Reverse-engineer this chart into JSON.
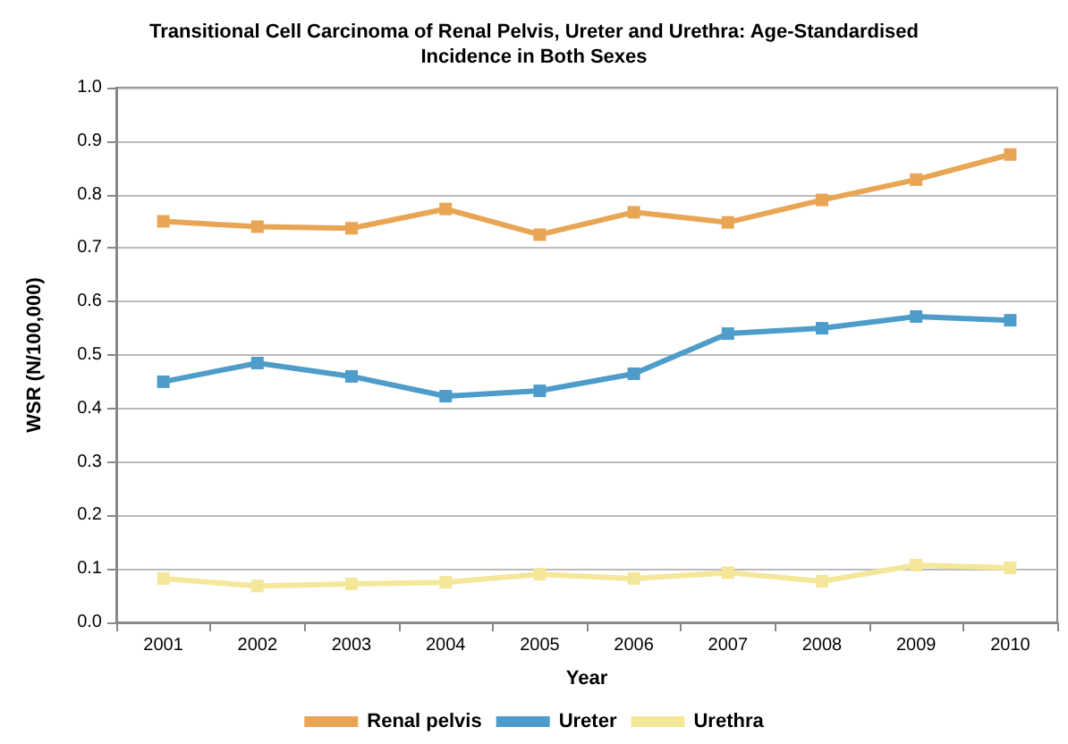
{
  "chart_data": {
    "type": "line",
    "title": "Transitional Cell Carcinoma of Renal Pelvis, Ureter and Urethra: Age-Standardised\nIncidence in Both Sexes",
    "xlabel": "Year",
    "ylabel": "WSR (N/100,000)",
    "categories": [
      "2001",
      "2002",
      "2003",
      "2004",
      "2005",
      "2006",
      "2007",
      "2008",
      "2009",
      "2010"
    ],
    "series": [
      {
        "name": "Renal pelvis",
        "color": "#e8a654",
        "values": [
          0.75,
          0.74,
          0.737,
          0.773,
          0.725,
          0.767,
          0.748,
          0.79,
          0.828,
          0.875
        ]
      },
      {
        "name": "Ureter",
        "color": "#4d9cc9",
        "values": [
          0.45,
          0.485,
          0.46,
          0.423,
          0.433,
          0.465,
          0.54,
          0.55,
          0.572,
          0.565
        ]
      },
      {
        "name": "Urethra",
        "color": "#f5e79a",
        "values": [
          0.082,
          0.068,
          0.072,
          0.075,
          0.09,
          0.082,
          0.093,
          0.077,
          0.107,
          0.102
        ]
      }
    ],
    "ylim": [
      0,
      1
    ],
    "yticks": [
      {
        "value": 0,
        "label": "0.0"
      },
      0.1,
      0.2,
      0.3,
      0.4,
      0.5,
      0.6,
      0.7,
      0.8,
      0.9,
      {
        "value": 1,
        "label": "1.0"
      }
    ],
    "grid": "y",
    "legend": "bottom",
    "marker": "square",
    "line_style": "solid"
  }
}
